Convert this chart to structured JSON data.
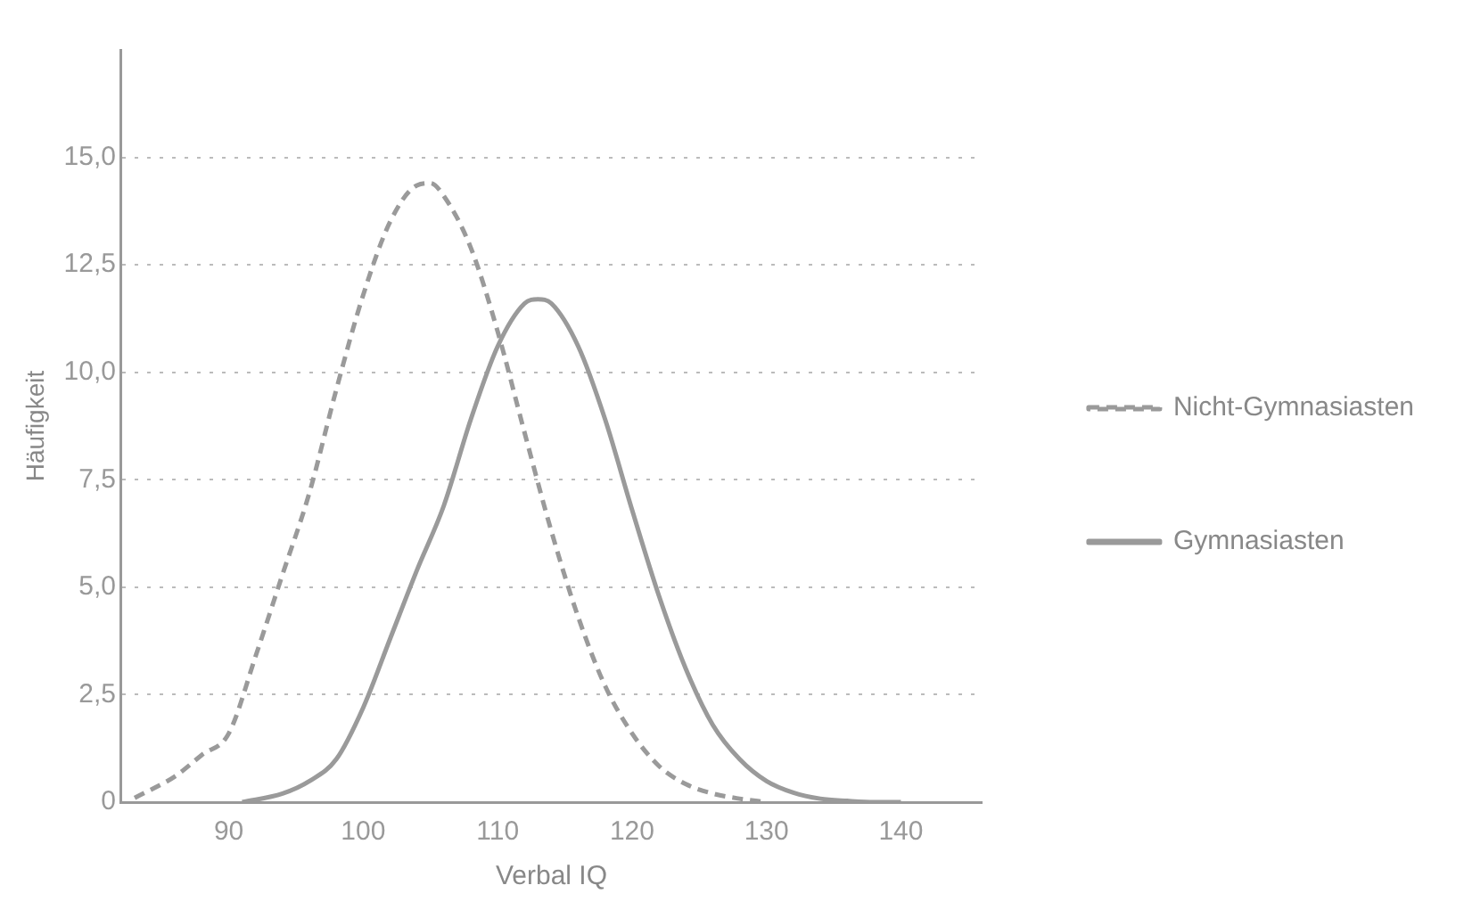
{
  "chart_data": {
    "type": "line",
    "xlabel": "Verbal IQ",
    "ylabel": "Häufigkeit",
    "xlim": [
      82,
      146
    ],
    "xticks": [
      90,
      100,
      110,
      120,
      130,
      140
    ],
    "ylim": [
      0,
      17.5
    ],
    "yticks": [
      0,
      {
        "value": 2.5,
        "label": "2,5"
      },
      {
        "value": 5,
        "label": "5,0"
      },
      {
        "value": 7.5,
        "label": "7,5"
      },
      {
        "value": 10,
        "label": "10,0"
      },
      {
        "value": 12.5,
        "label": "12,5"
      },
      {
        "value": 15,
        "label": "15,0"
      }
    ],
    "grid": "y",
    "legend": "right",
    "marker": "none",
    "series": [
      {
        "name": "Nicht-Gymnasiasten",
        "color": "#9a9a9a",
        "line_style": "dashed",
        "x": [
          83,
          86,
          88,
          90,
          92,
          94,
          96,
          98,
          100,
          102,
          104,
          105,
          106,
          108,
          110,
          112,
          114,
          116,
          118,
          120,
          122,
          124,
          126,
          128,
          130
        ],
        "values": [
          0.1,
          0.6,
          1.1,
          1.6,
          3.4,
          5.3,
          7.2,
          9.6,
          11.8,
          13.5,
          14.35,
          14.4,
          14.1,
          12.9,
          10.95,
          8.6,
          6.3,
          4.3,
          2.7,
          1.6,
          0.84,
          0.42,
          0.2,
          0.08,
          0
        ]
      },
      {
        "name": "Gymnasiasten",
        "color": "#9a9a9a",
        "line_style": "solid",
        "x": [
          91,
          94,
          96,
          98,
          100,
          102,
          104,
          106,
          108,
          110,
          112,
          113,
          114,
          116,
          118,
          120,
          122,
          124,
          126,
          128,
          130,
          132,
          134,
          136,
          138,
          140
        ],
        "values": [
          0,
          0.2,
          0.49,
          1.0,
          2.2,
          3.8,
          5.4,
          6.9,
          8.9,
          10.6,
          11.6,
          11.7,
          11.6,
          10.6,
          8.9,
          6.8,
          4.8,
          3.1,
          1.8,
          1.0,
          0.49,
          0.22,
          0.08,
          0.03,
          0,
          0
        ]
      }
    ]
  }
}
